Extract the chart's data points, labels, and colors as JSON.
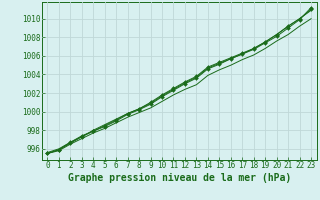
{
  "title": "Graphe pression niveau de la mer (hPa)",
  "background_color": "#d8f0f0",
  "plot_bg_color": "#d8f0f0",
  "grid_color": "#c0d8d8",
  "line_color": "#1a6b1a",
  "marker_color": "#1a6b1a",
  "x_ticks": [
    0,
    1,
    2,
    3,
    4,
    5,
    6,
    7,
    8,
    9,
    10,
    11,
    12,
    13,
    14,
    15,
    16,
    17,
    18,
    19,
    20,
    21,
    22,
    23
  ],
  "y_ticks": [
    996,
    998,
    1000,
    1002,
    1004,
    1006,
    1008,
    1010
  ],
  "xlim": [
    -0.5,
    23.5
  ],
  "ylim": [
    994.8,
    1011.8
  ],
  "lines": [
    [
      995.5,
      995.8,
      996.5,
      997.1,
      997.7,
      998.2,
      998.8,
      999.4,
      999.9,
      1000.4,
      1001.1,
      1001.8,
      1002.4,
      1002.9,
      1003.9,
      1004.5,
      1005.0,
      1005.6,
      1006.1,
      1006.8,
      1007.6,
      1008.3,
      1009.2,
      1010.0
    ],
    [
      995.5,
      995.9,
      996.6,
      997.3,
      997.9,
      998.5,
      999.1,
      999.8,
      1000.3,
      1001.0,
      1001.8,
      1002.5,
      1003.2,
      1003.8,
      1004.8,
      1005.3,
      1005.8,
      1006.3,
      1006.8,
      1007.5,
      1008.3,
      1009.2,
      1010.0,
      1011.0
    ],
    [
      995.6,
      996.0,
      996.7,
      997.3,
      998.0,
      998.6,
      999.2,
      999.8,
      1000.3,
      1000.9,
      1001.7,
      1002.4,
      1003.1,
      1003.7,
      1004.7,
      1005.2,
      1005.7,
      1006.2,
      1006.8,
      1007.5,
      1008.3,
      1009.2,
      1010.0,
      1010.9
    ],
    [
      995.5,
      995.9,
      996.7,
      997.4,
      997.9,
      998.4,
      999.0,
      999.7,
      1000.2,
      1000.8,
      1001.6,
      1002.3,
      1003.0,
      1003.6,
      1004.6,
      1005.1,
      1005.7,
      1006.2,
      1006.7,
      1007.4,
      1008.1,
      1009.0,
      1009.9,
      1011.2
    ]
  ],
  "marker_lines": [
    1,
    3
  ],
  "tick_fontsize": 5.5,
  "title_fontsize": 7.0
}
